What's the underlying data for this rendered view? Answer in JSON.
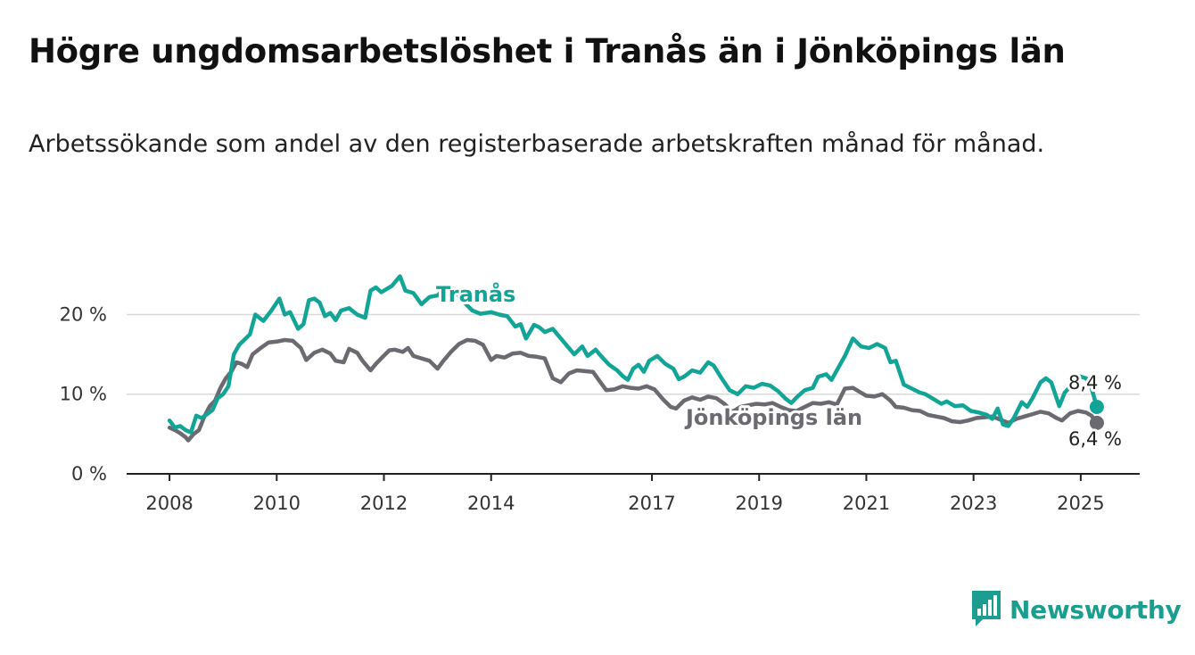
{
  "title": "Högre ungdomsarbetslöshet i Tranås än i Jönköpings län",
  "subtitle": "Arbetssökande som andel av den registerbaserade arbetskraften månad för månad.",
  "brand": "Newsworthy",
  "colors": {
    "Tranås": "#12a597",
    "Jönköpings län": "#6b6a70",
    "grid": "#d9d9d9",
    "axis": "#222222"
  },
  "chart_data": {
    "type": "line",
    "title": "Högre ungdomsarbetslöshet i Tranås än i Jönköpings län",
    "xlabel": "",
    "ylabel": "",
    "ylim": [
      0,
      27
    ],
    "xlim": [
      2007.2,
      2026.1
    ],
    "grid": true,
    "legend": "inline labels",
    "x_ticks": [
      "2008",
      "2010",
      "2012",
      "2014",
      "2017",
      "2019",
      "2021",
      "2023",
      "2025"
    ],
    "y_ticks": [
      {
        "value": 0,
        "label": "0 %"
      },
      {
        "value": 10,
        "label": "10 %"
      },
      {
        "value": 20,
        "label": "20 %"
      }
    ],
    "series": [
      {
        "name": "Tranås",
        "end_label": "8,4 %",
        "points": [
          [
            2008.0,
            6.7
          ],
          [
            2008.1,
            5.8
          ],
          [
            2008.2,
            6.0
          ],
          [
            2008.3,
            5.5
          ],
          [
            2008.4,
            5.2
          ],
          [
            2008.5,
            7.3
          ],
          [
            2008.6,
            7.0
          ],
          [
            2008.7,
            7.5
          ],
          [
            2008.8,
            8.0
          ],
          [
            2008.9,
            9.5
          ],
          [
            2009.0,
            10.0
          ],
          [
            2009.1,
            11.0
          ],
          [
            2009.2,
            15.0
          ],
          [
            2009.3,
            16.2
          ],
          [
            2009.5,
            17.5
          ],
          [
            2009.6,
            20.0
          ],
          [
            2009.75,
            19.2
          ],
          [
            2009.9,
            20.5
          ],
          [
            2010.05,
            22.0
          ],
          [
            2010.15,
            20.0
          ],
          [
            2010.25,
            20.3
          ],
          [
            2010.4,
            18.2
          ],
          [
            2010.5,
            18.8
          ],
          [
            2010.6,
            21.8
          ],
          [
            2010.7,
            22.0
          ],
          [
            2010.8,
            21.5
          ],
          [
            2010.9,
            19.8
          ],
          [
            2011.0,
            20.2
          ],
          [
            2011.1,
            19.3
          ],
          [
            2011.2,
            20.5
          ],
          [
            2011.35,
            20.8
          ],
          [
            2011.5,
            20.0
          ],
          [
            2011.65,
            19.6
          ],
          [
            2011.75,
            23.0
          ],
          [
            2011.85,
            23.4
          ],
          [
            2011.95,
            22.8
          ],
          [
            2012.05,
            23.2
          ],
          [
            2012.15,
            23.6
          ],
          [
            2012.3,
            24.8
          ],
          [
            2012.4,
            23.0
          ],
          [
            2012.55,
            22.7
          ],
          [
            2012.7,
            21.3
          ],
          [
            2012.85,
            22.2
          ],
          [
            2013.0,
            22.4
          ],
          [
            2013.15,
            23.4
          ],
          [
            2013.3,
            23.2
          ],
          [
            2013.5,
            21.5
          ],
          [
            2013.65,
            20.5
          ],
          [
            2013.8,
            20.1
          ],
          [
            2014.0,
            20.3
          ],
          [
            2014.15,
            20.0
          ],
          [
            2014.3,
            19.8
          ],
          [
            2014.45,
            18.5
          ],
          [
            2014.55,
            18.8
          ],
          [
            2014.65,
            17.0
          ],
          [
            2014.8,
            18.7
          ],
          [
            2014.9,
            18.4
          ],
          [
            2015.0,
            17.8
          ],
          [
            2015.15,
            18.2
          ],
          [
            2015.3,
            17.0
          ],
          [
            2015.45,
            15.8
          ],
          [
            2015.55,
            15.0
          ],
          [
            2015.7,
            16.0
          ],
          [
            2015.8,
            14.8
          ],
          [
            2015.95,
            15.6
          ],
          [
            2016.05,
            14.8
          ],
          [
            2016.2,
            13.7
          ],
          [
            2016.35,
            13.0
          ],
          [
            2016.45,
            12.3
          ],
          [
            2016.55,
            11.8
          ],
          [
            2016.65,
            13.2
          ],
          [
            2016.75,
            13.7
          ],
          [
            2016.85,
            12.8
          ],
          [
            2016.95,
            14.2
          ],
          [
            2017.1,
            14.8
          ],
          [
            2017.25,
            13.8
          ],
          [
            2017.4,
            13.2
          ],
          [
            2017.5,
            11.9
          ],
          [
            2017.6,
            12.2
          ],
          [
            2017.75,
            13.0
          ],
          [
            2017.9,
            12.7
          ],
          [
            2018.05,
            14.0
          ],
          [
            2018.15,
            13.6
          ],
          [
            2018.3,
            12.0
          ],
          [
            2018.45,
            10.5
          ],
          [
            2018.6,
            10.0
          ],
          [
            2018.75,
            11.0
          ],
          [
            2018.9,
            10.8
          ],
          [
            2019.05,
            11.3
          ],
          [
            2019.2,
            11.1
          ],
          [
            2019.35,
            10.4
          ],
          [
            2019.5,
            9.4
          ],
          [
            2019.6,
            8.9
          ],
          [
            2019.7,
            9.6
          ],
          [
            2019.85,
            10.5
          ],
          [
            2020.0,
            10.8
          ],
          [
            2020.1,
            12.2
          ],
          [
            2020.25,
            12.5
          ],
          [
            2020.35,
            11.8
          ],
          [
            2020.45,
            13.0
          ],
          [
            2020.6,
            14.8
          ],
          [
            2020.75,
            17.0
          ],
          [
            2020.9,
            16.0
          ],
          [
            2021.05,
            15.8
          ],
          [
            2021.2,
            16.3
          ],
          [
            2021.35,
            15.8
          ],
          [
            2021.45,
            14.0
          ],
          [
            2021.55,
            14.2
          ],
          [
            2021.7,
            11.2
          ],
          [
            2021.85,
            10.7
          ],
          [
            2022.0,
            10.2
          ],
          [
            2022.1,
            10.0
          ],
          [
            2022.25,
            9.4
          ],
          [
            2022.4,
            8.8
          ],
          [
            2022.5,
            9.1
          ],
          [
            2022.65,
            8.5
          ],
          [
            2022.8,
            8.6
          ],
          [
            2022.95,
            7.9
          ],
          [
            2023.1,
            7.7
          ],
          [
            2023.25,
            7.4
          ],
          [
            2023.35,
            6.9
          ],
          [
            2023.45,
            8.2
          ],
          [
            2023.55,
            6.2
          ],
          [
            2023.65,
            6.0
          ],
          [
            2023.75,
            7.0
          ],
          [
            2023.9,
            9.0
          ],
          [
            2024.0,
            8.4
          ],
          [
            2024.1,
            9.5
          ],
          [
            2024.25,
            11.5
          ],
          [
            2024.35,
            12.0
          ],
          [
            2024.45,
            11.5
          ],
          [
            2024.6,
            8.5
          ],
          [
            2024.7,
            10.2
          ],
          [
            2024.85,
            11.3
          ],
          [
            2024.95,
            12.3
          ],
          [
            2025.1,
            12.0
          ],
          [
            2025.2,
            10.8
          ],
          [
            2025.3,
            8.4
          ]
        ]
      },
      {
        "name": "Jönköpings län",
        "end_label": "6,4 %",
        "points": [
          [
            2008.0,
            5.8
          ],
          [
            2008.1,
            5.5
          ],
          [
            2008.2,
            5.1
          ],
          [
            2008.3,
            4.6
          ],
          [
            2008.35,
            4.2
          ],
          [
            2008.45,
            5.0
          ],
          [
            2008.55,
            5.5
          ],
          [
            2008.65,
            7.2
          ],
          [
            2008.75,
            8.5
          ],
          [
            2008.85,
            9.2
          ],
          [
            2008.95,
            10.8
          ],
          [
            2009.05,
            12.0
          ],
          [
            2009.15,
            12.8
          ],
          [
            2009.25,
            14.0
          ],
          [
            2009.35,
            13.8
          ],
          [
            2009.45,
            13.4
          ],
          [
            2009.55,
            15.0
          ],
          [
            2009.7,
            15.8
          ],
          [
            2009.85,
            16.5
          ],
          [
            2010.0,
            16.6
          ],
          [
            2010.15,
            16.8
          ],
          [
            2010.3,
            16.7
          ],
          [
            2010.45,
            15.8
          ],
          [
            2010.55,
            14.3
          ],
          [
            2010.7,
            15.2
          ],
          [
            2010.85,
            15.6
          ],
          [
            2011.0,
            15.1
          ],
          [
            2011.1,
            14.2
          ],
          [
            2011.25,
            14.0
          ],
          [
            2011.35,
            15.7
          ],
          [
            2011.5,
            15.2
          ],
          [
            2011.6,
            14.2
          ],
          [
            2011.75,
            13.0
          ],
          [
            2011.85,
            13.8
          ],
          [
            2011.95,
            14.5
          ],
          [
            2012.1,
            15.5
          ],
          [
            2012.2,
            15.6
          ],
          [
            2012.35,
            15.3
          ],
          [
            2012.45,
            15.8
          ],
          [
            2012.55,
            14.8
          ],
          [
            2012.7,
            14.5
          ],
          [
            2012.85,
            14.2
          ],
          [
            2013.0,
            13.2
          ],
          [
            2013.1,
            14.1
          ],
          [
            2013.25,
            15.3
          ],
          [
            2013.4,
            16.3
          ],
          [
            2013.55,
            16.8
          ],
          [
            2013.7,
            16.7
          ],
          [
            2013.85,
            16.2
          ],
          [
            2014.0,
            14.3
          ],
          [
            2014.1,
            14.8
          ],
          [
            2014.25,
            14.6
          ],
          [
            2014.4,
            15.1
          ],
          [
            2014.55,
            15.2
          ],
          [
            2014.7,
            14.8
          ],
          [
            2014.85,
            14.7
          ],
          [
            2015.0,
            14.5
          ],
          [
            2015.15,
            12.0
          ],
          [
            2015.3,
            11.5
          ],
          [
            2015.45,
            12.6
          ],
          [
            2015.6,
            13.0
          ],
          [
            2015.75,
            12.9
          ],
          [
            2015.9,
            12.8
          ],
          [
            2016.05,
            11.4
          ],
          [
            2016.15,
            10.5
          ],
          [
            2016.3,
            10.6
          ],
          [
            2016.45,
            11.0
          ],
          [
            2016.6,
            10.8
          ],
          [
            2016.75,
            10.7
          ],
          [
            2016.9,
            11.0
          ],
          [
            2017.05,
            10.6
          ],
          [
            2017.2,
            9.4
          ],
          [
            2017.35,
            8.4
          ],
          [
            2017.45,
            8.2
          ],
          [
            2017.6,
            9.2
          ],
          [
            2017.75,
            9.6
          ],
          [
            2017.9,
            9.3
          ],
          [
            2018.05,
            9.7
          ],
          [
            2018.2,
            9.5
          ],
          [
            2018.35,
            8.8
          ],
          [
            2018.5,
            7.8
          ],
          [
            2018.65,
            8.4
          ],
          [
            2018.8,
            8.6
          ],
          [
            2018.95,
            8.8
          ],
          [
            2019.1,
            8.7
          ],
          [
            2019.25,
            8.9
          ],
          [
            2019.4,
            8.4
          ],
          [
            2019.55,
            8.0
          ],
          [
            2019.7,
            7.9
          ],
          [
            2019.85,
            8.4
          ],
          [
            2020.0,
            8.9
          ],
          [
            2020.15,
            8.8
          ],
          [
            2020.3,
            9.0
          ],
          [
            2020.45,
            8.7
          ],
          [
            2020.6,
            10.7
          ],
          [
            2020.75,
            10.8
          ],
          [
            2020.9,
            10.2
          ],
          [
            2021.0,
            9.8
          ],
          [
            2021.15,
            9.7
          ],
          [
            2021.3,
            10.0
          ],
          [
            2021.45,
            9.2
          ],
          [
            2021.55,
            8.4
          ],
          [
            2021.7,
            8.3
          ],
          [
            2021.85,
            8.0
          ],
          [
            2022.0,
            7.9
          ],
          [
            2022.15,
            7.4
          ],
          [
            2022.3,
            7.2
          ],
          [
            2022.45,
            7.0
          ],
          [
            2022.6,
            6.6
          ],
          [
            2022.75,
            6.5
          ],
          [
            2022.9,
            6.7
          ],
          [
            2023.05,
            7.0
          ],
          [
            2023.2,
            7.1
          ],
          [
            2023.35,
            7.2
          ],
          [
            2023.5,
            6.8
          ],
          [
            2023.65,
            6.4
          ],
          [
            2023.8,
            6.9
          ],
          [
            2023.95,
            7.2
          ],
          [
            2024.1,
            7.5
          ],
          [
            2024.25,
            7.8
          ],
          [
            2024.4,
            7.6
          ],
          [
            2024.55,
            7.0
          ],
          [
            2024.65,
            6.7
          ],
          [
            2024.8,
            7.6
          ],
          [
            2024.95,
            7.9
          ],
          [
            2025.1,
            7.7
          ],
          [
            2025.2,
            7.3
          ],
          [
            2025.3,
            6.4
          ]
        ]
      }
    ]
  }
}
